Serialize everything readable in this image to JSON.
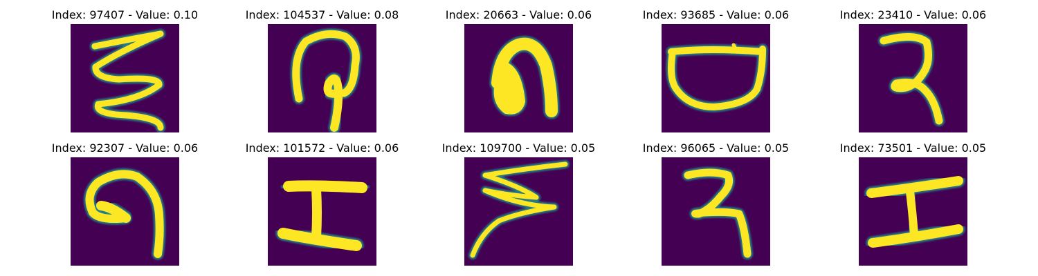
{
  "chart_data": {
    "type": "image-grid",
    "rows": 2,
    "cols": 5,
    "colormap": "viridis",
    "axes": "off",
    "colors": {
      "background": "#440154",
      "foreground": "#fde725",
      "edge": "#21918c"
    },
    "panels": [
      {
        "title": "Index: 97407 - Value: 0.10",
        "index": 97407,
        "value": 0.1,
        "glyph": "zigzag-vertical-icon"
      },
      {
        "title": "Index: 104537 - Value: 0.08",
        "index": 104537,
        "value": 0.08,
        "glyph": "hook-loop-icon"
      },
      {
        "title": "Index: 20663 - Value: 0.06",
        "index": 20663,
        "value": 0.06,
        "glyph": "arch-blob-icon"
      },
      {
        "title": "Index: 93685 - Value: 0.06",
        "index": 93685,
        "value": 0.06,
        "glyph": "bowl-icon"
      },
      {
        "title": "Index: 23410 - Value: 0.06",
        "index": 23410,
        "value": 0.06,
        "glyph": "curl-tail-icon"
      },
      {
        "title": "Index: 92307 - Value: 0.06",
        "index": 92307,
        "value": 0.06,
        "glyph": "spiral-hook-icon"
      },
      {
        "title": "Index: 101572 - Value: 0.06",
        "index": 101572,
        "value": 0.06,
        "glyph": "hourglass-z-icon"
      },
      {
        "title": "Index: 109700 - Value: 0.05",
        "index": 109700,
        "value": 0.05,
        "glyph": "lightning-zigzag-icon"
      },
      {
        "title": "Index: 96065 - Value: 0.05",
        "index": 96065,
        "value": 0.05,
        "glyph": "curl-stem-icon"
      },
      {
        "title": "Index: 73501 - Value: 0.05",
        "index": 73501,
        "value": 0.05,
        "glyph": "i-beam-icon"
      }
    ]
  }
}
